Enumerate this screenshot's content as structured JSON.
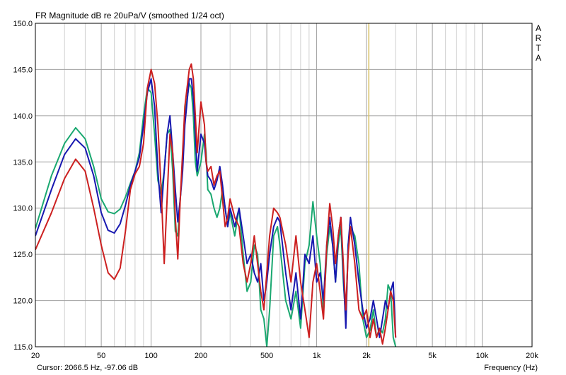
{
  "window": {
    "title": "FR Magnitude dB re 20uPa/V (smoothed 1/24 oct)",
    "brand_letters": [
      "A",
      "R",
      "T",
      "A"
    ],
    "cursor_readout": "Cursor: 2066.5 Hz, -97.06 dB",
    "xlabel": "Frequency (Hz)"
  },
  "chart_data": {
    "type": "line",
    "title": "FR Magnitude dB re 20uPa/V (smoothed 1/24 oct)",
    "xlabel": "Frequency (Hz)",
    "ylabel": "",
    "x_scale": "log",
    "xlim": [
      20,
      20000
    ],
    "ylim": [
      115,
      150
    ],
    "x_ticks": [
      20,
      50,
      100,
      200,
      500,
      1000,
      2000,
      5000,
      10000,
      20000
    ],
    "x_tick_labels": [
      "20",
      "50",
      "100",
      "200",
      "500",
      "1k",
      "2k",
      "5k",
      "10k",
      "20k"
    ],
    "y_ticks": [
      115,
      120,
      125,
      130,
      135,
      140,
      145,
      150
    ],
    "y_tick_labels": [
      "115.0",
      "120.0",
      "125.0",
      "130.0",
      "135.0",
      "140.0",
      "145.0",
      "150.0"
    ],
    "grid": true,
    "cursor_frequency": 2066.5,
    "colors": {
      "cursor": "#d8c060",
      "grid": "#a0a0a0",
      "grid_minor": "#d0d0d0"
    },
    "series": [
      {
        "color": "#1aa870",
        "points": [
          [
            20,
            127.8
          ],
          [
            25,
            133.5
          ],
          [
            30,
            137
          ],
          [
            35,
            138.7
          ],
          [
            40,
            137.5
          ],
          [
            45,
            134.5
          ],
          [
            50,
            131
          ],
          [
            55,
            129.6
          ],
          [
            60,
            129.4
          ],
          [
            65,
            129.9
          ],
          [
            70,
            131.2
          ],
          [
            75,
            132.7
          ],
          [
            80,
            134
          ],
          [
            85,
            136
          ],
          [
            90,
            140
          ],
          [
            95,
            143
          ],
          [
            100,
            142.5
          ],
          [
            105,
            138
          ],
          [
            110,
            133
          ],
          [
            115,
            131.5
          ],
          [
            120,
            134
          ],
          [
            125,
            138
          ],
          [
            130,
            138.5
          ],
          [
            135,
            134
          ],
          [
            140,
            127.5
          ],
          [
            145,
            127
          ],
          [
            150,
            131
          ],
          [
            155,
            135
          ],
          [
            160,
            140
          ],
          [
            170,
            143.5
          ],
          [
            175,
            143
          ],
          [
            180,
            140
          ],
          [
            185,
            135
          ],
          [
            190,
            133.5
          ],
          [
            200,
            135
          ],
          [
            210,
            138
          ],
          [
            215,
            136
          ],
          [
            220,
            132
          ],
          [
            230,
            131.5
          ],
          [
            240,
            130
          ],
          [
            250,
            129
          ],
          [
            260,
            130
          ],
          [
            270,
            132
          ],
          [
            280,
            130
          ],
          [
            290,
            128
          ],
          [
            300,
            129.5
          ],
          [
            320,
            127
          ],
          [
            340,
            130
          ],
          [
            360,
            125
          ],
          [
            380,
            121
          ],
          [
            400,
            122
          ],
          [
            420,
            126
          ],
          [
            440,
            125
          ],
          [
            460,
            119
          ],
          [
            480,
            118
          ],
          [
            500,
            115
          ],
          [
            520,
            119
          ],
          [
            550,
            127
          ],
          [
            580,
            128
          ],
          [
            600,
            126
          ],
          [
            650,
            120
          ],
          [
            700,
            118
          ],
          [
            750,
            121
          ],
          [
            800,
            117
          ],
          [
            850,
            124
          ],
          [
            900,
            126
          ],
          [
            950,
            130.7
          ],
          [
            1000,
            127
          ],
          [
            1050,
            124
          ],
          [
            1100,
            119
          ],
          [
            1150,
            125
          ],
          [
            1200,
            128
          ],
          [
            1250,
            126
          ],
          [
            1300,
            122
          ],
          [
            1350,
            126
          ],
          [
            1400,
            128
          ],
          [
            1450,
            122
          ],
          [
            1500,
            118
          ],
          [
            1550,
            126
          ],
          [
            1600,
            128
          ],
          [
            1700,
            127
          ],
          [
            1800,
            124
          ],
          [
            1900,
            118
          ],
          [
            2000,
            116
          ],
          [
            2100,
            116.8
          ],
          [
            2200,
            119
          ],
          [
            2300,
            116
          ],
          [
            2400,
            117
          ],
          [
            2500,
            116.5
          ],
          [
            2600,
            118
          ],
          [
            2700,
            121.7
          ],
          [
            2800,
            121
          ],
          [
            2900,
            116
          ],
          [
            3000,
            115
          ]
        ]
      },
      {
        "color": "#1818b0",
        "points": [
          [
            20,
            127
          ],
          [
            25,
            132
          ],
          [
            30,
            135.8
          ],
          [
            35,
            137.5
          ],
          [
            40,
            136.5
          ],
          [
            45,
            133.5
          ],
          [
            50,
            129.5
          ],
          [
            55,
            127.6
          ],
          [
            60,
            127.3
          ],
          [
            65,
            128.3
          ],
          [
            70,
            130.3
          ],
          [
            75,
            132.5
          ],
          [
            80,
            134
          ],
          [
            85,
            135.5
          ],
          [
            90,
            139
          ],
          [
            95,
            142.5
          ],
          [
            100,
            144
          ],
          [
            105,
            141
          ],
          [
            110,
            134
          ],
          [
            115,
            129.5
          ],
          [
            120,
            134
          ],
          [
            125,
            138
          ],
          [
            130,
            140
          ],
          [
            135,
            136
          ],
          [
            140,
            132
          ],
          [
            145,
            128.5
          ],
          [
            150,
            131
          ],
          [
            155,
            134
          ],
          [
            160,
            139
          ],
          [
            170,
            144
          ],
          [
            175,
            144
          ],
          [
            180,
            142
          ],
          [
            185,
            138
          ],
          [
            190,
            134
          ],
          [
            200,
            138
          ],
          [
            210,
            137
          ],
          [
            215,
            135
          ],
          [
            220,
            133.5
          ],
          [
            230,
            133
          ],
          [
            240,
            132
          ],
          [
            250,
            133
          ],
          [
            260,
            134.5
          ],
          [
            270,
            132.5
          ],
          [
            280,
            130
          ],
          [
            290,
            128
          ],
          [
            300,
            130
          ],
          [
            320,
            128
          ],
          [
            340,
            130
          ],
          [
            360,
            127
          ],
          [
            380,
            124
          ],
          [
            400,
            125
          ],
          [
            420,
            123
          ],
          [
            440,
            122
          ],
          [
            460,
            124
          ],
          [
            480,
            120
          ],
          [
            500,
            122
          ],
          [
            520,
            125
          ],
          [
            550,
            128
          ],
          [
            580,
            129
          ],
          [
            600,
            128.5
          ],
          [
            650,
            123
          ],
          [
            700,
            119
          ],
          [
            750,
            123
          ],
          [
            800,
            118
          ],
          [
            850,
            125
          ],
          [
            900,
            124
          ],
          [
            950,
            127
          ],
          [
            1000,
            122
          ],
          [
            1050,
            123
          ],
          [
            1100,
            120
          ],
          [
            1150,
            126
          ],
          [
            1200,
            129
          ],
          [
            1250,
            126
          ],
          [
            1300,
            122
          ],
          [
            1350,
            127
          ],
          [
            1400,
            129
          ],
          [
            1450,
            123
          ],
          [
            1500,
            117
          ],
          [
            1550,
            126
          ],
          [
            1600,
            129
          ],
          [
            1700,
            126
          ],
          [
            1800,
            122
          ],
          [
            1900,
            119
          ],
          [
            2000,
            117
          ],
          [
            2100,
            118
          ],
          [
            2200,
            120
          ],
          [
            2300,
            118
          ],
          [
            2400,
            116
          ],
          [
            2500,
            118
          ],
          [
            2600,
            120
          ],
          [
            2700,
            119
          ],
          [
            2800,
            121
          ],
          [
            2900,
            122
          ],
          [
            3000,
            116
          ]
        ]
      },
      {
        "color": "#cc2020",
        "points": [
          [
            20,
            125.5
          ],
          [
            25,
            129.5
          ],
          [
            30,
            133.2
          ],
          [
            35,
            135.3
          ],
          [
            40,
            134
          ],
          [
            45,
            130
          ],
          [
            50,
            126
          ],
          [
            55,
            123
          ],
          [
            60,
            122.3
          ],
          [
            65,
            123.5
          ],
          [
            70,
            127.5
          ],
          [
            75,
            132
          ],
          [
            80,
            133.7
          ],
          [
            85,
            134.5
          ],
          [
            90,
            137
          ],
          [
            95,
            143
          ],
          [
            100,
            145
          ],
          [
            105,
            143.5
          ],
          [
            110,
            139
          ],
          [
            115,
            132
          ],
          [
            120,
            124
          ],
          [
            125,
            131
          ],
          [
            130,
            138
          ],
          [
            135,
            136
          ],
          [
            140,
            129
          ],
          [
            145,
            124.5
          ],
          [
            150,
            131
          ],
          [
            155,
            136
          ],
          [
            160,
            141
          ],
          [
            170,
            145
          ],
          [
            175,
            145.6
          ],
          [
            180,
            144
          ],
          [
            185,
            140
          ],
          [
            190,
            136
          ],
          [
            200,
            141.5
          ],
          [
            210,
            139
          ],
          [
            215,
            135
          ],
          [
            220,
            134
          ],
          [
            230,
            134.5
          ],
          [
            240,
            132.5
          ],
          [
            250,
            133.5
          ],
          [
            260,
            134
          ],
          [
            270,
            131
          ],
          [
            280,
            128
          ],
          [
            290,
            129
          ],
          [
            300,
            131
          ],
          [
            320,
            129
          ],
          [
            340,
            128
          ],
          [
            360,
            124
          ],
          [
            380,
            122
          ],
          [
            400,
            124
          ],
          [
            420,
            127
          ],
          [
            440,
            124
          ],
          [
            460,
            121
          ],
          [
            480,
            119
          ],
          [
            500,
            123
          ],
          [
            520,
            127
          ],
          [
            550,
            130
          ],
          [
            580,
            129.5
          ],
          [
            600,
            129
          ],
          [
            650,
            126
          ],
          [
            700,
            122
          ],
          [
            750,
            127
          ],
          [
            800,
            122
          ],
          [
            850,
            119
          ],
          [
            900,
            116
          ],
          [
            950,
            122
          ],
          [
            1000,
            124
          ],
          [
            1050,
            121
          ],
          [
            1100,
            118
          ],
          [
            1150,
            126
          ],
          [
            1200,
            130.5
          ],
          [
            1250,
            128
          ],
          [
            1300,
            124
          ],
          [
            1350,
            127
          ],
          [
            1400,
            129
          ],
          [
            1450,
            124
          ],
          [
            1500,
            119
          ],
          [
            1550,
            125
          ],
          [
            1600,
            128
          ],
          [
            1700,
            124
          ],
          [
            1800,
            119
          ],
          [
            1900,
            118
          ],
          [
            2000,
            119
          ],
          [
            2100,
            116
          ],
          [
            2200,
            118
          ],
          [
            2300,
            116
          ],
          [
            2400,
            117
          ],
          [
            2500,
            115.3
          ],
          [
            2600,
            117
          ],
          [
            2700,
            119
          ],
          [
            2800,
            121
          ],
          [
            2900,
            120
          ],
          [
            3000,
            116
          ]
        ]
      }
    ]
  }
}
